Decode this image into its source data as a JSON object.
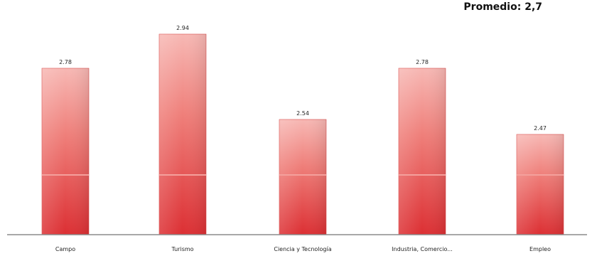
{
  "header": {
    "average_label": "Promedio: 2,7"
  },
  "chart_data": {
    "type": "bar",
    "title": "",
    "xlabel": "",
    "ylabel": "",
    "categories": [
      "Campo",
      "Turismo",
      "Ciencia y Tecnología",
      "Industria, Comercio...",
      "Empleo"
    ],
    "values": [
      2.78,
      2.94,
      2.54,
      2.78,
      2.47
    ],
    "value_labels": [
      "2.78",
      "2.94",
      "2.54",
      "2.78",
      "2.47"
    ],
    "ylim": [
      2.0,
      3.0
    ],
    "grid": false,
    "bar_color": "#e8514f",
    "bar_top_color": "#f7b8b4",
    "axis_color": "#8c8c8c"
  }
}
